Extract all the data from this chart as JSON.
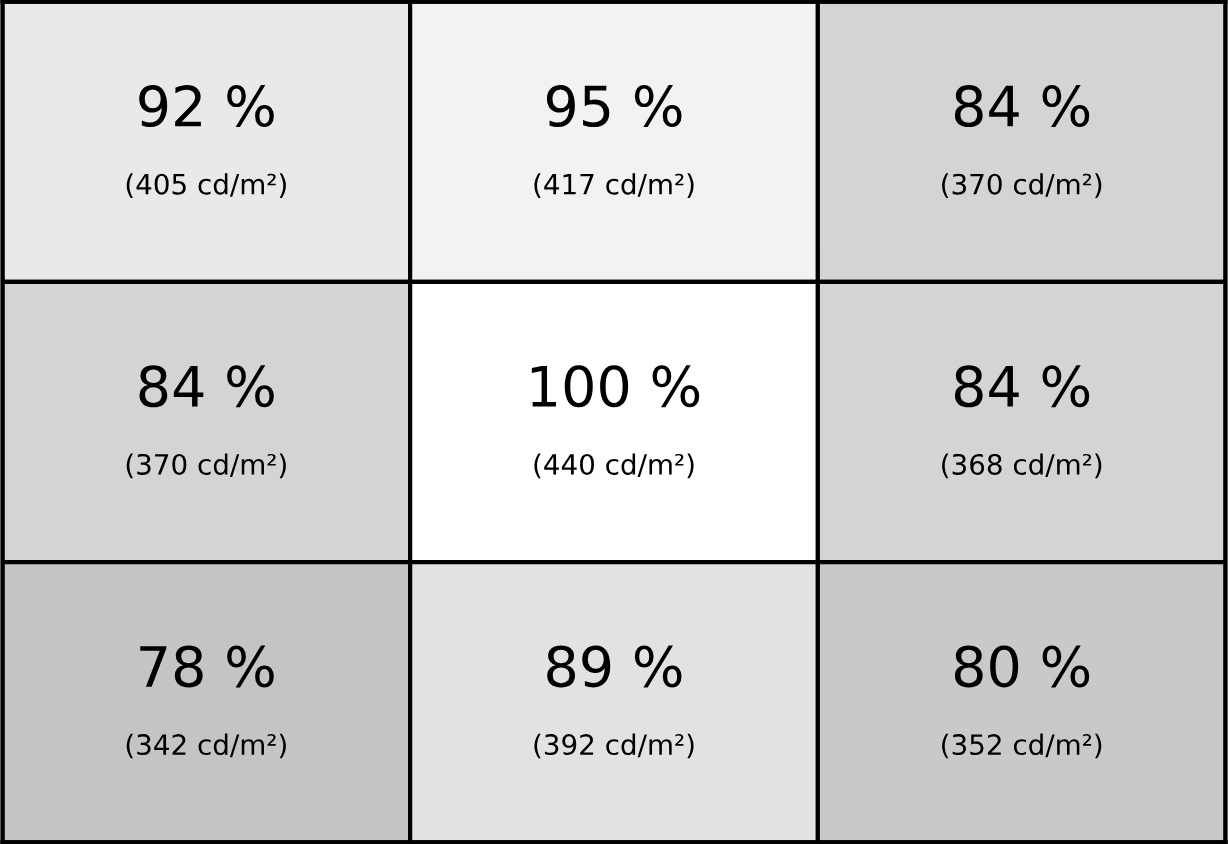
{
  "chart_data": {
    "type": "heatmap",
    "categories": [
      null,
      null,
      null
    ],
    "y_categories": [
      null,
      null,
      null
    ],
    "cells": [
      [
        92,
        95,
        84
      ],
      [
        84,
        100,
        84
      ],
      [
        78,
        89,
        80
      ]
    ],
    "cell_labels": [
      [
        "92 %",
        "95 %",
        "84 %"
      ],
      [
        "84 %",
        "100 %",
        "84 %"
      ],
      [
        "78 %",
        "89 %",
        "80 %"
      ]
    ],
    "annotations": [
      "(405 cd/m²)",
      "(417 cd/m²)",
      "(370 cd/m²)",
      "(370 cd/m²)",
      "(440 cd/m²)",
      "(368 cd/m²)",
      "(342 cd/m²)",
      "(392 cd/m²)",
      "(352 cd/m²)"
    ]
  }
}
